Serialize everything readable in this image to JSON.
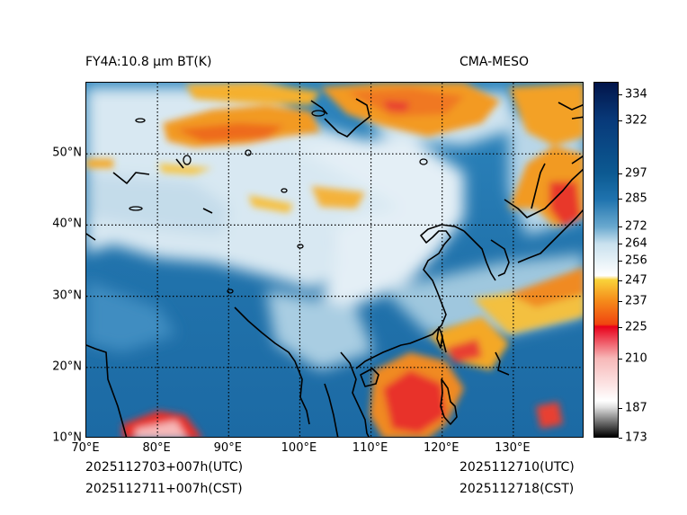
{
  "header": {
    "product": "FY4A:10.8 μm BT(K)",
    "source": "CMA-MESO"
  },
  "footer": {
    "init_utc": "2025112703+007h(UTC)",
    "init_cst": "2025112711+007h(CST)",
    "valid_utc": "2025112710(UTC)",
    "valid_cst": "2025112718(CST)"
  },
  "map": {
    "lon_range": [
      70,
      140
    ],
    "lat_range": [
      10,
      60
    ],
    "lon_ticks": [
      {
        "value": 70,
        "label": "70°E"
      },
      {
        "value": 80,
        "label": "80°E"
      },
      {
        "value": 90,
        "label": "90°E"
      },
      {
        "value": 100,
        "label": "100°E"
      },
      {
        "value": 110,
        "label": "110°E"
      },
      {
        "value": 120,
        "label": "120°E"
      },
      {
        "value": 130,
        "label": "130°E"
      }
    ],
    "lat_ticks": [
      {
        "value": 10,
        "label": "10°N"
      },
      {
        "value": 20,
        "label": "20°N"
      },
      {
        "value": 30,
        "label": "30°N"
      },
      {
        "value": 40,
        "label": "40°N"
      },
      {
        "value": 50,
        "label": "50°N"
      }
    ],
    "gridlines": "dotted"
  },
  "colorbar": {
    "vmin": 173,
    "vmax": 340,
    "ticks": [
      {
        "value": 173,
        "label": "173"
      },
      {
        "value": 187,
        "label": "187"
      },
      {
        "value": 210,
        "label": "210"
      },
      {
        "value": 225,
        "label": "225"
      },
      {
        "value": 237,
        "label": "237"
      },
      {
        "value": 247,
        "label": "247"
      },
      {
        "value": 256,
        "label": "256"
      },
      {
        "value": 264,
        "label": "264"
      },
      {
        "value": 272,
        "label": "272"
      },
      {
        "value": 285,
        "label": "285"
      },
      {
        "value": 297,
        "label": "297"
      },
      {
        "value": 322,
        "label": "322"
      },
      {
        "value": 334,
        "label": "334"
      }
    ],
    "stops": [
      {
        "value": 173,
        "color": "#000000"
      },
      {
        "value": 187,
        "color": "#e0e0e0"
      },
      {
        "value": 190,
        "color": "#ffffff"
      },
      {
        "value": 210,
        "color": "#f7b8b8"
      },
      {
        "value": 225,
        "color": "#e8001a"
      },
      {
        "value": 226,
        "color": "#f04410"
      },
      {
        "value": 237,
        "color": "#f58a1a"
      },
      {
        "value": 247,
        "color": "#f9d23a"
      },
      {
        "value": 249,
        "color": "#ffffff"
      },
      {
        "value": 264,
        "color": "#c9e1ee"
      },
      {
        "value": 272,
        "color": "#6aa9cf"
      },
      {
        "value": 285,
        "color": "#1f73ae"
      },
      {
        "value": 297,
        "color": "#0c5a92"
      },
      {
        "value": 322,
        "color": "#083a7a"
      },
      {
        "value": 340,
        "color": "#02154a"
      }
    ]
  },
  "colors": {
    "ocean_base": "#1e6ea8",
    "land_pale": "#cfe2ee",
    "cold_cloud": "#f39a24",
    "deep_convection": "#e83a30",
    "coastline": "#000000"
  }
}
